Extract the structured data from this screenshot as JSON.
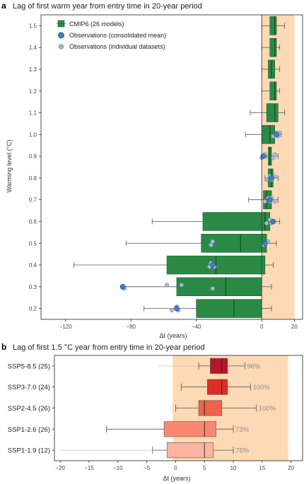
{
  "panel_a": {
    "letter": "a",
    "title": "Lag of first warm year from entry time in 20-year period",
    "ylabel": "Warming level (°C)",
    "xlabel": "Δt (years)",
    "legend": {
      "cmip6": "CMIP6 (26 models)",
      "obs_mean": "Observations (consolidated mean)",
      "obs_individual": "Observations (individual datasets)"
    }
  },
  "panel_b": {
    "letter": "b",
    "title": "Lag of first 1.5 °C year from entry time in 20-year period",
    "xlabel": "Δt (years)"
  },
  "colors": {
    "shade": "#fdd9b5",
    "cmip6_box": "#2a8a45",
    "obs_mean": "#3f7fbf",
    "obs_individual": "#a7b6d9",
    "whisker": "#555555",
    "ssp585": "#b2182b",
    "ssp370": "#de2d26",
    "ssp245": "#f0624a",
    "ssp126": "#f98870",
    "ssp119": "#fbb4a0"
  },
  "chart_data": [
    {
      "type": "box",
      "xlabel": "Δt (years)",
      "ylabel": "Warming level (°C)",
      "xlim": [
        -135,
        25
      ],
      "xticks": [
        -120,
        -80,
        -40,
        0,
        20
      ],
      "shaded_interval": [
        0,
        20
      ],
      "categories": [
        "0.2",
        "0.3",
        "0.4",
        "0.5",
        "0.6",
        "0.7",
        "0.8",
        "0.9",
        "1.0",
        "1.1",
        "1.2",
        "1.3",
        "1.4",
        "1.5"
      ],
      "boxes": [
        {
          "level": "0.2",
          "whisker_low": -72,
          "q1": -40,
          "median": -17,
          "q3": 0,
          "whisker_high": 6
        },
        {
          "level": "0.3",
          "whisker_low": -85,
          "q1": -52,
          "median": -22,
          "q3": 0,
          "whisker_high": 6
        },
        {
          "level": "0.4",
          "whisker_low": -115,
          "q1": -58,
          "median": -28,
          "q3": 2,
          "whisker_high": 7
        },
        {
          "level": "0.5",
          "whisker_low": -83,
          "q1": -37,
          "median": -13,
          "q3": 3,
          "whisker_high": 9
        },
        {
          "level": "0.6",
          "whisker_low": -67,
          "q1": -36,
          "median": 2,
          "q3": 5,
          "whisker_high": 11
        },
        {
          "level": "0.7",
          "whisker_low": -8,
          "q1": 1,
          "median": 3,
          "q3": 6,
          "whisker_high": 10
        },
        {
          "level": "0.8",
          "whisker_low": 2,
          "q1": 4,
          "median": 6,
          "q3": 7,
          "whisker_high": 10
        },
        {
          "level": "0.9",
          "whisker_low": 3,
          "q1": 4,
          "median": 5,
          "q3": 6,
          "whisker_high": 10
        },
        {
          "level": "1.0",
          "whisker_low": -10,
          "q1": 0,
          "median": 5,
          "q3": 8,
          "whisker_high": 12
        },
        {
          "level": "1.1",
          "whisker_low": -7,
          "q1": 3,
          "median": 8,
          "q3": 10,
          "whisker_high": 14
        },
        {
          "level": "1.2",
          "whisker_low": 0,
          "q1": 5,
          "median": 8,
          "q3": 9,
          "whisker_high": 11
        },
        {
          "level": "1.3",
          "whisker_low": 0,
          "q1": 4,
          "median": 6,
          "q3": 8,
          "whisker_high": 11
        },
        {
          "level": "1.4",
          "whisker_low": 0,
          "q1": 5,
          "median": 8,
          "q3": 9,
          "whisker_high": 11
        },
        {
          "level": "1.5",
          "whisker_low": 0,
          "q1": 5,
          "median": 8,
          "q3": 9,
          "whisker_high": 14
        }
      ],
      "obs_mean": [
        {
          "level": "0.2",
          "x": -52
        },
        {
          "level": "0.3",
          "x": -85
        },
        {
          "level": "0.4",
          "x": -30
        },
        {
          "level": "0.5",
          "x": 2
        },
        {
          "level": "0.6",
          "x": 7
        },
        {
          "level": "0.7",
          "x": 5
        },
        {
          "level": "0.8",
          "x": 6
        },
        {
          "level": "0.9",
          "x": 1
        },
        {
          "level": "1.0",
          "x": 9
        }
      ],
      "obs_individual": [
        {
          "level": "0.2",
          "x": [
            -55,
            -52,
            -51
          ]
        },
        {
          "level": "0.3",
          "x": [
            -84,
            -58,
            -30,
            -49
          ]
        },
        {
          "level": "0.4",
          "x": [
            -32,
            -31,
            -29
          ]
        },
        {
          "level": "0.5",
          "x": [
            -31,
            -30,
            1,
            4
          ]
        },
        {
          "level": "0.6",
          "x": [
            3,
            5,
            6
          ]
        },
        {
          "level": "0.7",
          "x": [
            2,
            4,
            5,
            6,
            8
          ]
        },
        {
          "level": "0.8",
          "x": [
            3,
            5,
            6,
            8
          ]
        },
        {
          "level": "0.9",
          "x": [
            0,
            2,
            7,
            8
          ]
        },
        {
          "level": "1.0",
          "x": [
            7,
            9,
            10,
            11
          ]
        }
      ]
    },
    {
      "type": "box",
      "xlabel": "Δt (years)",
      "xlim": [
        -21,
        22
      ],
      "xticks": [
        -20,
        -15,
        -10,
        -5,
        0,
        5,
        10,
        15,
        20
      ],
      "shaded_interval": [
        -0.5,
        19.5
      ],
      "categories": [
        "SSP5-8.5 (25)",
        "SSP3-7.0 (24)",
        "SSP2-4.5 (26)",
        "SSP1-2.6 (26)",
        "SSP1-1.9 (12)"
      ],
      "boxes": [
        {
          "scenario": "SSP5-8.5 (25)",
          "whisker_low": -3,
          "whisker_inner": 4,
          "q1": 6,
          "median": 8,
          "q3": 9,
          "whisker_high": 12,
          "percent": "96%"
        },
        {
          "scenario": "SSP3-7.0 (24)",
          "whisker_low": 1,
          "q1": 5.5,
          "median": 8,
          "q3": 9,
          "whisker_high": 13,
          "percent": "100%"
        },
        {
          "scenario": "SSP2-4.5 (26)",
          "whisker_low": 0,
          "q1": 4,
          "median": 5,
          "q3": 8,
          "whisker_high": 14,
          "percent": "100%"
        },
        {
          "scenario": "SSP1-2.6 (26)",
          "whisker_low": -12,
          "q1": -2,
          "median": 5,
          "q3": 7,
          "whisker_high": 10,
          "percent": "73%"
        },
        {
          "scenario": "SSP1-1.9 (12)",
          "whisker_low": -20,
          "whisker_inner": -4,
          "q1": -1.5,
          "median": 5,
          "q3": 6.5,
          "whisker_high": 10,
          "percent": "75%"
        }
      ]
    }
  ]
}
